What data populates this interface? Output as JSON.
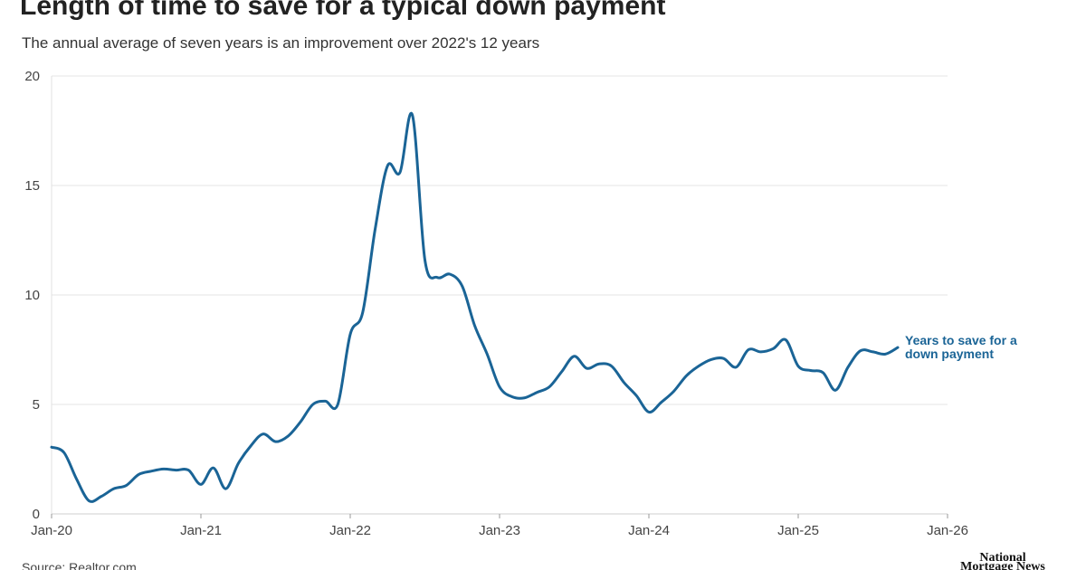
{
  "chart_data": {
    "type": "line",
    "title": "Length of time to save for a typical down payment",
    "subtitle": "The annual average of seven years is an improvement over 2022's 12 years",
    "source": "Source: Realtor.com",
    "brand": "National Mortgage News",
    "x": [
      0,
      1,
      2,
      3,
      4,
      5,
      6,
      7,
      8,
      9,
      10,
      11,
      12,
      13,
      14,
      15,
      16,
      17,
      18,
      19,
      20,
      21,
      22,
      23,
      24,
      25,
      26,
      27,
      28,
      29,
      30,
      31,
      32,
      33,
      34,
      35,
      36,
      37,
      38,
      39,
      40,
      41,
      42,
      43,
      44,
      45,
      46,
      47,
      48,
      49,
      50,
      51,
      52,
      53,
      54,
      55,
      56,
      57,
      58,
      59,
      60,
      61,
      62,
      63,
      64,
      65,
      66,
      67,
      68
    ],
    "series": [
      {
        "name": "Years to save for a down payment",
        "color": "#1a6496",
        "values": [
          3.05,
          2.8,
          1.6,
          0.6,
          0.8,
          1.15,
          1.3,
          1.8,
          1.95,
          2.05,
          2.0,
          2.0,
          1.35,
          2.1,
          1.15,
          2.3,
          3.1,
          3.65,
          3.3,
          3.55,
          4.2,
          5.0,
          5.15,
          5.0,
          8.2,
          9.2,
          13.0,
          15.9,
          15.6,
          18.2,
          11.6,
          10.8,
          10.95,
          10.4,
          8.6,
          7.3,
          5.8,
          5.35,
          5.3,
          5.55,
          5.8,
          6.5,
          7.2,
          6.65,
          6.85,
          6.75,
          6.0,
          5.4,
          4.65,
          5.1,
          5.6,
          6.3,
          6.75,
          7.05,
          7.1,
          6.7,
          7.5,
          7.4,
          7.55,
          7.95,
          6.75,
          6.55,
          6.45,
          5.65,
          6.7,
          7.45,
          7.4,
          7.3,
          7.6
        ]
      }
    ],
    "xlim": [
      0,
      72
    ],
    "xticks": [
      {
        "value": 0,
        "label": "Jan-20"
      },
      {
        "value": 12,
        "label": "Jan-21"
      },
      {
        "value": 24,
        "label": "Jan-22"
      },
      {
        "value": 36,
        "label": "Jan-23"
      },
      {
        "value": 48,
        "label": "Jan-24"
      },
      {
        "value": 60,
        "label": "Jan-25"
      },
      {
        "value": 72,
        "label": "Jan-26"
      }
    ],
    "ylim": [
      0,
      20
    ],
    "yticks": [
      0,
      5,
      10,
      15,
      20
    ],
    "grid": true
  }
}
